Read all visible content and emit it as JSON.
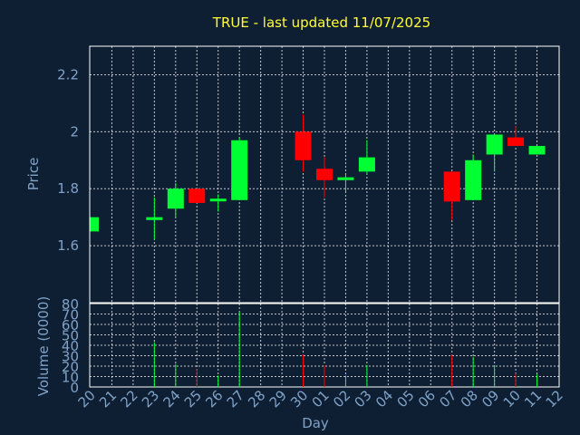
{
  "chart_data": [
    {
      "type": "candlestick",
      "title": "TRUE - last updated 11/07/2025",
      "ylabel": "Price",
      "ylim": [
        1.4,
        2.3
      ],
      "yticks": [
        1.6,
        1.8,
        2,
        2.2
      ],
      "ytick_labels": [
        "1.6",
        "1.8",
        "2",
        "2.2"
      ],
      "grid": true,
      "colors": {
        "up": "#00ff33",
        "down": "#ff0000",
        "grid": "#ffffff",
        "background": "#0f1f33"
      },
      "x_labels": [
        "20",
        "21",
        "22",
        "23",
        "24",
        "25",
        "26",
        "27",
        "28",
        "29",
        "30",
        "01",
        "02",
        "03",
        "04",
        "05",
        "06",
        "07",
        "08",
        "09",
        "10",
        "11",
        "12"
      ],
      "candles": [
        {
          "x": "20",
          "open": 1.65,
          "high": 1.7,
          "low": 1.65,
          "close": 1.7
        },
        {
          "x": "23",
          "open": 1.69,
          "high": 1.77,
          "low": 1.62,
          "close": 1.7
        },
        {
          "x": "24",
          "open": 1.73,
          "high": 1.82,
          "low": 1.7,
          "close": 1.8
        },
        {
          "x": "25",
          "open": 1.8,
          "high": 1.8,
          "low": 1.75,
          "close": 1.75
        },
        {
          "x": "26",
          "open": 1.76,
          "high": 1.78,
          "low": 1.72,
          "close": 1.765
        },
        {
          "x": "27",
          "open": 1.76,
          "high": 1.98,
          "low": 1.76,
          "close": 1.97
        },
        {
          "x": "30",
          "open": 2.0,
          "high": 2.06,
          "low": 1.86,
          "close": 1.9
        },
        {
          "x": "01",
          "open": 1.87,
          "high": 1.91,
          "low": 1.77,
          "close": 1.83
        },
        {
          "x": "02",
          "open": 1.83,
          "high": 1.85,
          "low": 1.79,
          "close": 1.84
        },
        {
          "x": "03",
          "open": 1.86,
          "high": 1.97,
          "low": 1.85,
          "close": 1.91
        },
        {
          "x": "07",
          "open": 1.86,
          "high": 1.86,
          "low": 1.69,
          "close": 1.755
        },
        {
          "x": "08",
          "open": 1.76,
          "high": 1.92,
          "low": 1.76,
          "close": 1.9
        },
        {
          "x": "09",
          "open": 1.92,
          "high": 1.99,
          "low": 1.86,
          "close": 1.99
        },
        {
          "x": "10",
          "open": 1.98,
          "high": 2.02,
          "low": 1.95,
          "close": 1.95
        },
        {
          "x": "11",
          "open": 1.92,
          "high": 1.95,
          "low": 1.92,
          "close": 1.95
        }
      ]
    },
    {
      "type": "bar",
      "ylabel": "Volume (0000)",
      "xlabel": "Day",
      "ylim": [
        0,
        80
      ],
      "yticks": [
        0,
        10,
        20,
        30,
        40,
        50,
        60,
        70,
        80
      ],
      "ytick_labels": [
        "0",
        "10",
        "20",
        "30",
        "40",
        "50",
        "60",
        "70",
        "80"
      ],
      "grid": true,
      "x_labels": [
        "20",
        "21",
        "22",
        "23",
        "24",
        "25",
        "26",
        "27",
        "28",
        "29",
        "30",
        "01",
        "02",
        "03",
        "04",
        "05",
        "06",
        "07",
        "08",
        "09",
        "10",
        "11",
        "12"
      ],
      "bars": [
        {
          "x": "20",
          "value": 0,
          "direction": "up"
        },
        {
          "x": "23",
          "value": 43,
          "direction": "up"
        },
        {
          "x": "24",
          "value": 22,
          "direction": "up"
        },
        {
          "x": "25",
          "value": 17,
          "direction": "down"
        },
        {
          "x": "26",
          "value": 11,
          "direction": "up"
        },
        {
          "x": "27",
          "value": 72,
          "direction": "up"
        },
        {
          "x": "30",
          "value": 31,
          "direction": "down"
        },
        {
          "x": "01",
          "value": 21,
          "direction": "down"
        },
        {
          "x": "02",
          "value": 11,
          "direction": "up"
        },
        {
          "x": "03",
          "value": 21,
          "direction": "up"
        },
        {
          "x": "07",
          "value": 31,
          "direction": "down"
        },
        {
          "x": "08",
          "value": 29,
          "direction": "up"
        },
        {
          "x": "09",
          "value": 21,
          "direction": "up"
        },
        {
          "x": "10",
          "value": 13,
          "direction": "down"
        },
        {
          "x": "11",
          "value": 12,
          "direction": "up"
        }
      ]
    }
  ]
}
